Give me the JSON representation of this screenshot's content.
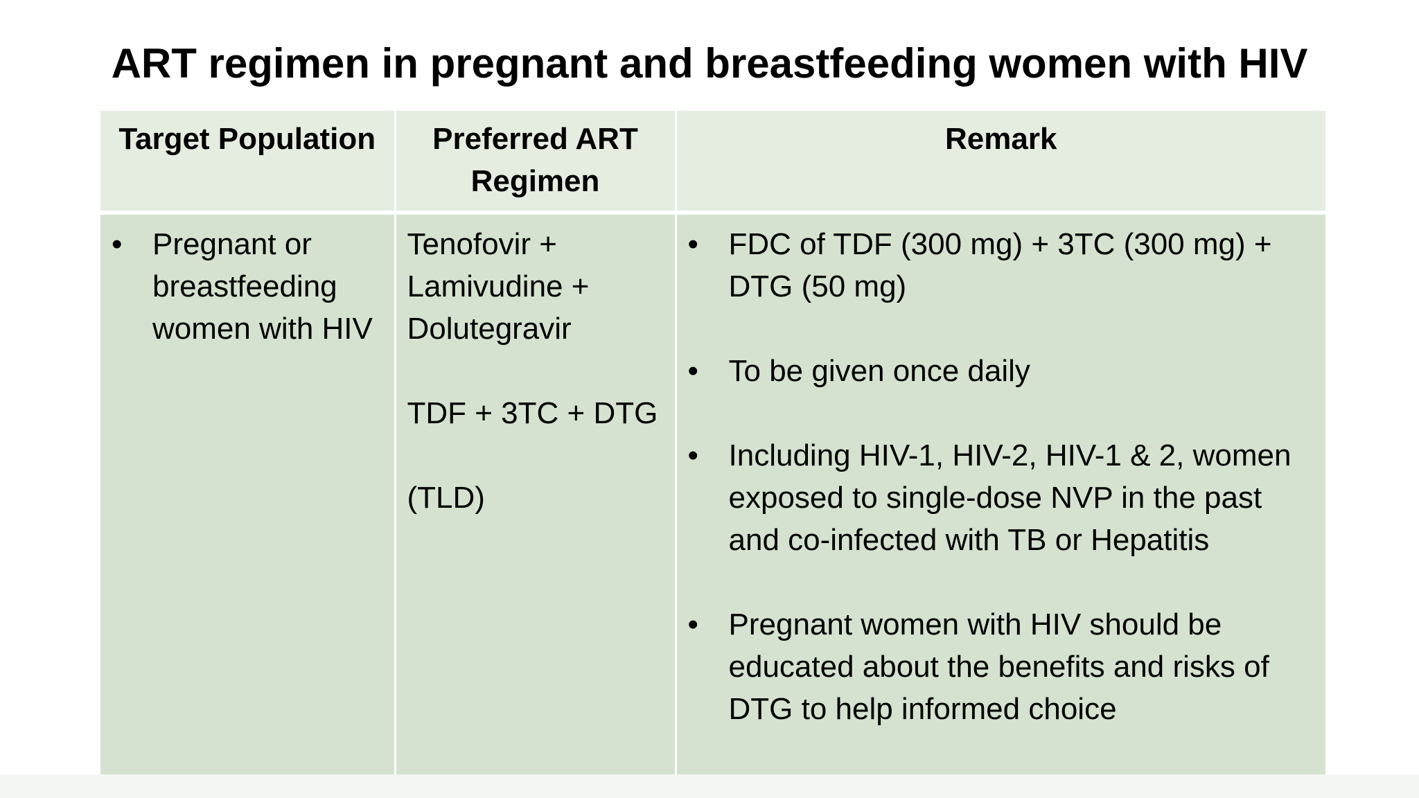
{
  "title": "ART regimen in pregnant and breastfeeding women with HIV",
  "table": {
    "headers": [
      "Target Population",
      "Preferred ART Regimen",
      "Remark"
    ],
    "target_population": [
      "Pregnant or breastfeeding women with HIV"
    ],
    "preferred_regimen": {
      "full_name_lines": [
        "Tenofovir +",
        "Lamivudine +",
        "Dolutegravir"
      ],
      "abbreviation": "TDF + 3TC + DTG",
      "short_name": "(TLD)"
    },
    "remarks": [
      "FDC of TDF (300 mg) + 3TC (300 mg) + DTG (50 mg)",
      "To be given once daily",
      "Including HIV-1, HIV-2, HIV-1 & 2, women exposed to single-dose NVP in the past and co-infected with TB or Hepatitis",
      "Pregnant women with HIV should be educated about the benefits and risks of DTG to help informed choice"
    ],
    "bullet_glyph": "•"
  },
  "colors": {
    "header_fill": "#e4ede0",
    "body_fill": "#d5e2cf",
    "text": "#000000"
  }
}
